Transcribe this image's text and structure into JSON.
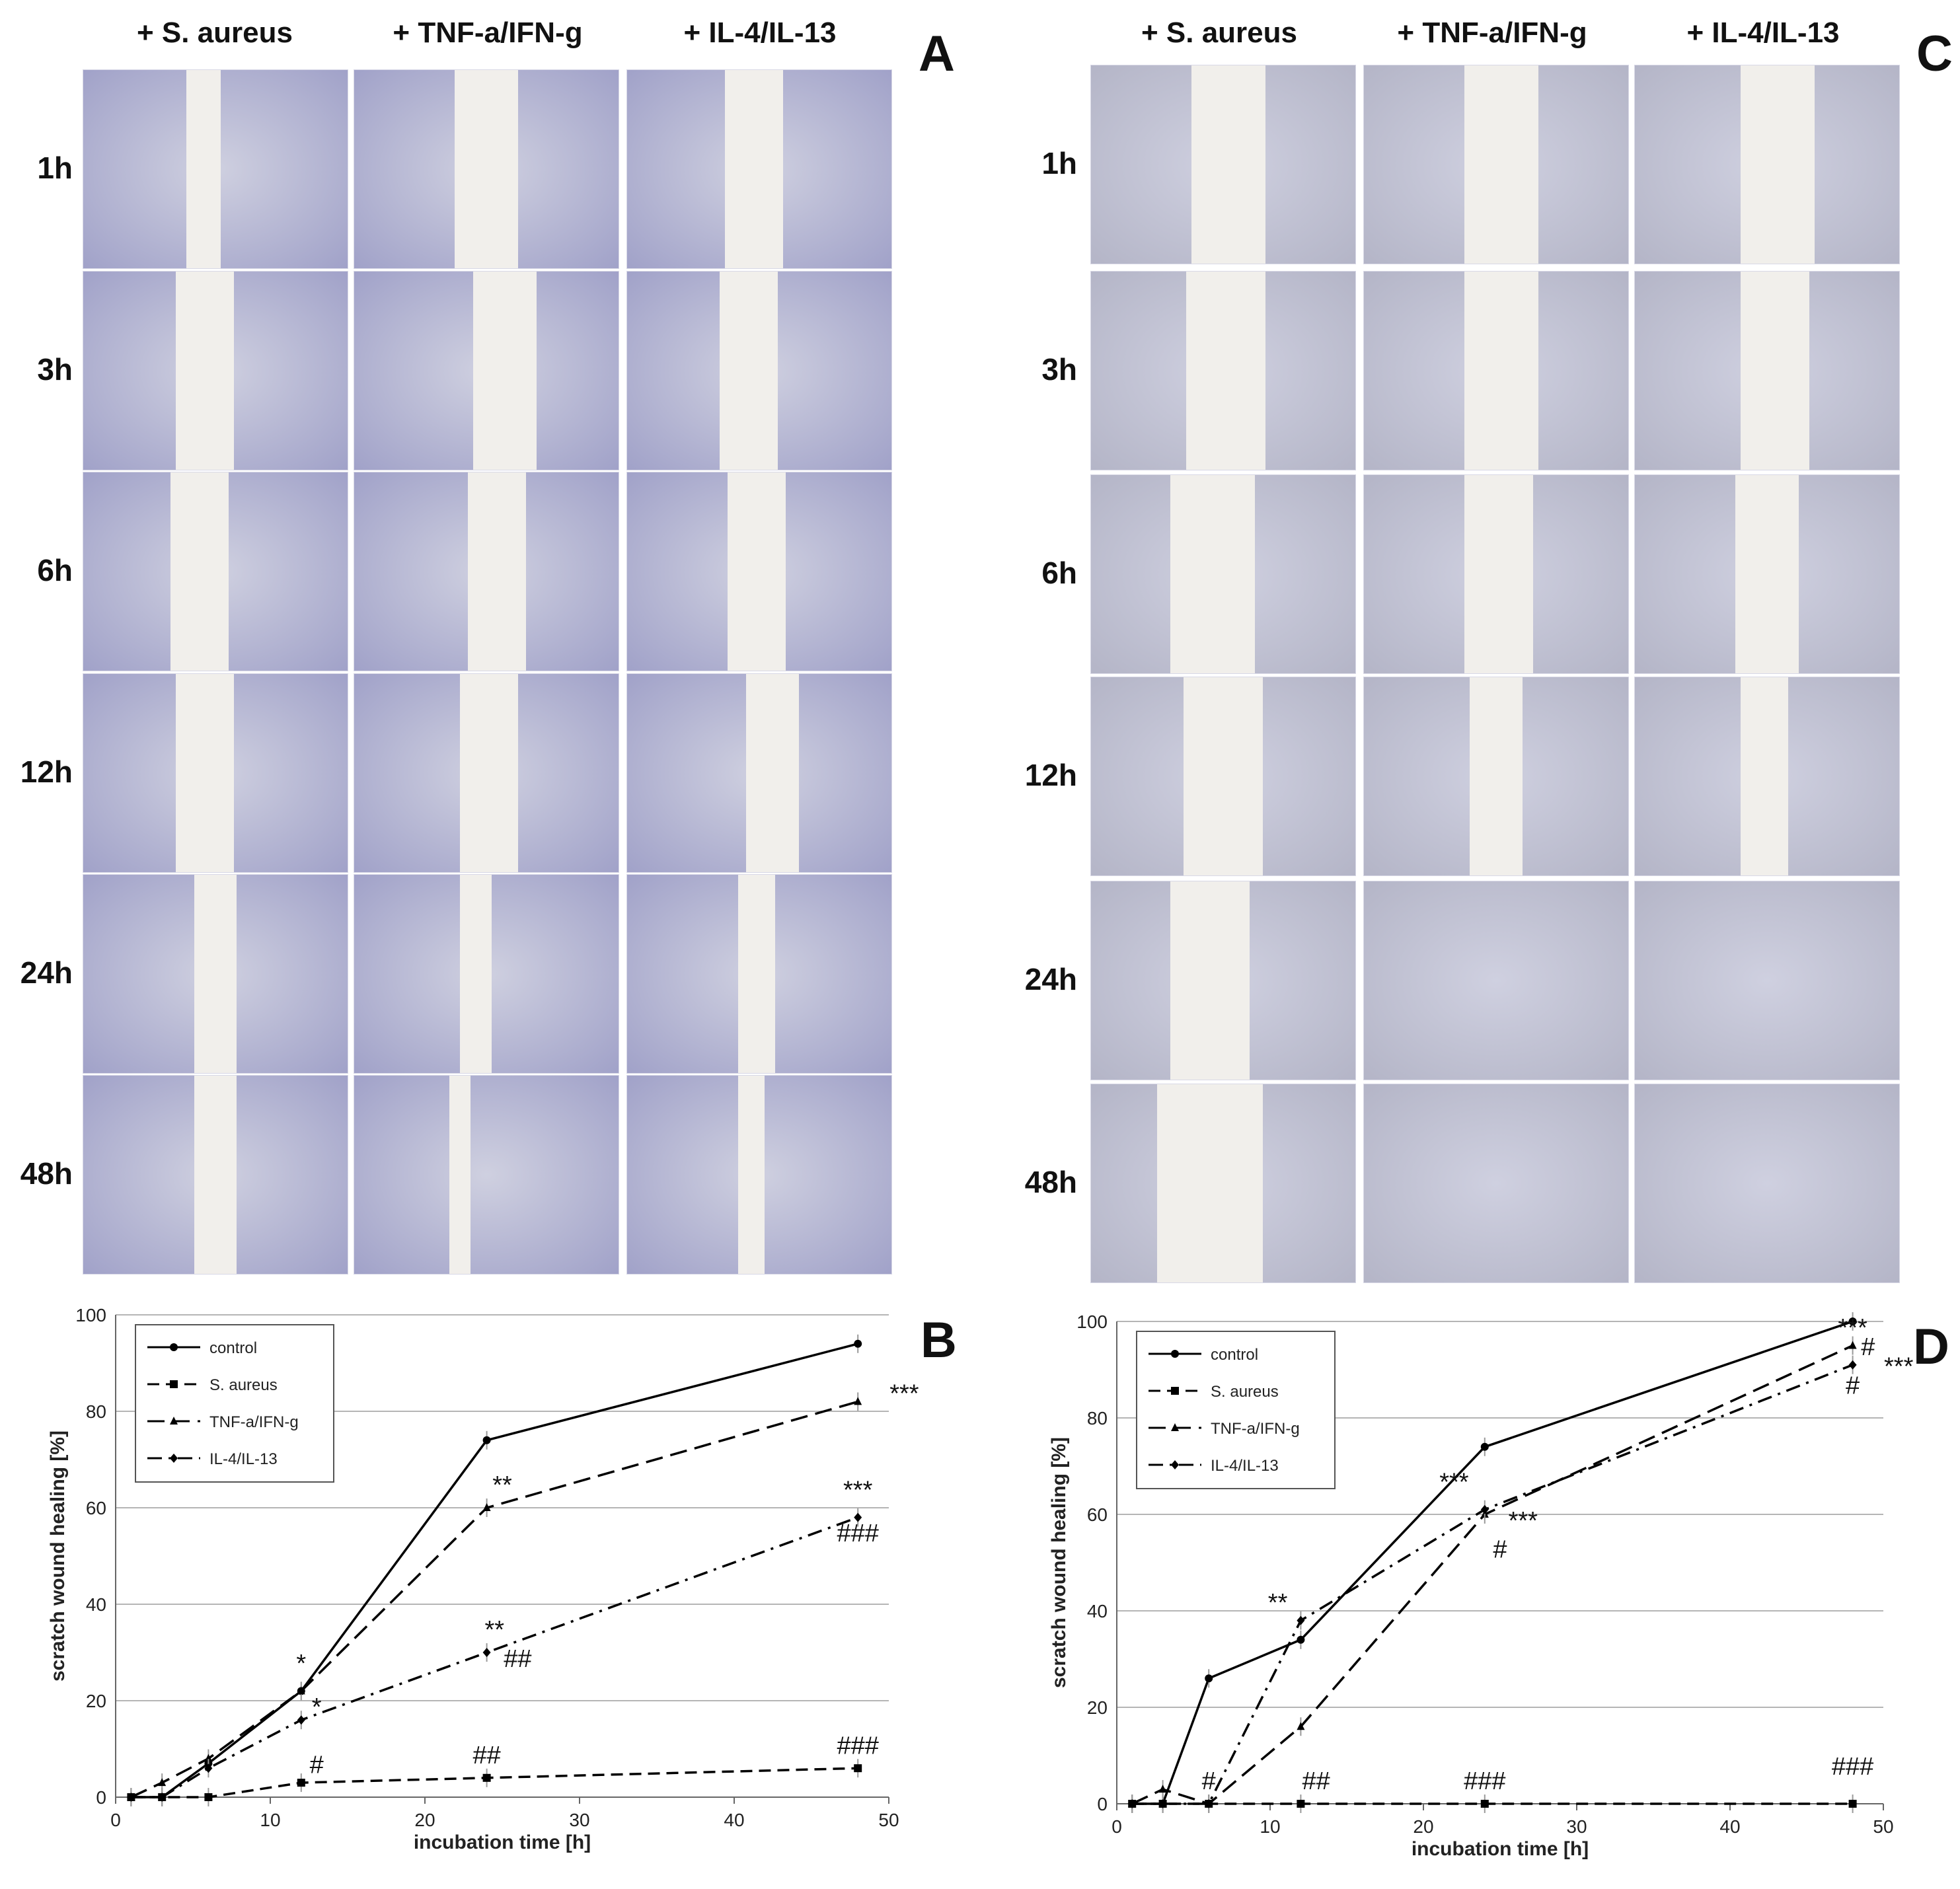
{
  "panel_a": {
    "letter": "A",
    "columns": [
      "+ S. aureus",
      "+ TNF-a/IFN-g",
      "+ IL-4/IL-13"
    ],
    "rows": [
      "1h",
      "3h",
      "6h",
      "12h",
      "24h",
      "48h"
    ],
    "image_tint": "#8e8fbf"
  },
  "panel_c": {
    "letter": "C",
    "columns": [
      "+ S. aureus",
      "+ TNF-a/IFN-g",
      "+ IL-4/IL-13"
    ],
    "rows": [
      "1h",
      "3h",
      "6h",
      "12h",
      "24h",
      "48h"
    ],
    "image_tint": "#a9aabd"
  },
  "chart_data": [
    {
      "panel": "B",
      "type": "line",
      "xlabel": "incubation time [h]",
      "ylabel": "scratch wound healing [%]",
      "xlim": [
        0,
        50
      ],
      "ylim": [
        0,
        100
      ],
      "xticks": [
        "0",
        "10",
        "20",
        "30",
        "40",
        "50"
      ],
      "yticks": [
        "0",
        "20",
        "40",
        "60",
        "80",
        "100"
      ],
      "grid": "horizontal",
      "legend_position": "top-left",
      "series": [
        {
          "name": "control",
          "style": "solid",
          "marker": "circle",
          "x": [
            1,
            3,
            6,
            12,
            24,
            48
          ],
          "y": [
            0,
            0,
            7,
            22,
            74,
            94
          ]
        },
        {
          "name": "S. aureus",
          "style": "dashed",
          "marker": "square",
          "x": [
            1,
            3,
            6,
            12,
            24,
            48
          ],
          "y": [
            0,
            0,
            0,
            3,
            4,
            6
          ]
        },
        {
          "name": "TNF-a/IFN-g",
          "style": "longdash",
          "marker": "triangle",
          "x": [
            1,
            3,
            6,
            12,
            24,
            48
          ],
          "y": [
            0,
            3,
            8,
            22,
            60,
            82
          ]
        },
        {
          "name": "IL-4/IL-13",
          "style": "dashdot",
          "marker": "diamond",
          "x": [
            1,
            3,
            6,
            12,
            24,
            48
          ],
          "y": [
            0,
            0,
            6,
            16,
            30,
            58
          ]
        }
      ],
      "annotations": [
        {
          "text": "*",
          "x": 12,
          "y": 26
        },
        {
          "text": "*",
          "x": 13,
          "y": 17
        },
        {
          "text": "#",
          "x": 13,
          "y": 5
        },
        {
          "text": "**",
          "x": 25,
          "y": 63
        },
        {
          "text": "**",
          "x": 24.5,
          "y": 33
        },
        {
          "text": "##",
          "x": 26,
          "y": 27
        },
        {
          "text": "##",
          "x": 24,
          "y": 7
        },
        {
          "text": "***",
          "x": 51,
          "y": 82
        },
        {
          "text": "***",
          "x": 48,
          "y": 62
        },
        {
          "text": "###",
          "x": 48,
          "y": 53
        },
        {
          "text": "###",
          "x": 48,
          "y": 9
        }
      ]
    },
    {
      "panel": "D",
      "type": "line",
      "xlabel": "incubation time [h]",
      "ylabel": "scratch wound healing [%]",
      "xlim": [
        0,
        50
      ],
      "ylim": [
        0,
        100
      ],
      "xticks": [
        "0",
        "10",
        "20",
        "30",
        "40",
        "50"
      ],
      "yticks": [
        "0",
        "20",
        "40",
        "60",
        "80",
        "100"
      ],
      "grid": "horizontal",
      "legend_position": "top-left",
      "series": [
        {
          "name": "control",
          "style": "solid",
          "marker": "circle",
          "x": [
            1,
            3,
            6,
            12,
            24,
            48
          ],
          "y": [
            0,
            0,
            26,
            34,
            74,
            100
          ]
        },
        {
          "name": "S. aureus",
          "style": "dashed",
          "marker": "square",
          "x": [
            1,
            3,
            6,
            12,
            24,
            48
          ],
          "y": [
            0,
            0,
            0,
            0,
            0,
            0
          ]
        },
        {
          "name": "TNF-a/IFN-g",
          "style": "longdash",
          "marker": "triangle",
          "x": [
            1,
            3,
            6,
            12,
            24,
            48
          ],
          "y": [
            0,
            3,
            0,
            16,
            60,
            95
          ]
        },
        {
          "name": "IL-4/IL-13",
          "style": "dashdot",
          "marker": "diamond",
          "x": [
            1,
            3,
            6,
            12,
            24,
            48
          ],
          "y": [
            0,
            0,
            0,
            38,
            61,
            91
          ]
        }
      ],
      "annotations": [
        {
          "text": "***",
          "x": 48,
          "y": 97
        },
        {
          "text": "#",
          "x": 49,
          "y": 93
        },
        {
          "text": "***",
          "x": 51,
          "y": 89
        },
        {
          "text": "#",
          "x": 48,
          "y": 85
        },
        {
          "text": "***",
          "x": 22,
          "y": 65
        },
        {
          "text": "***",
          "x": 26.5,
          "y": 57
        },
        {
          "text": "#",
          "x": 25,
          "y": 51
        },
        {
          "text": "**",
          "x": 10.5,
          "y": 40
        },
        {
          "text": "#",
          "x": 6,
          "y": 3
        },
        {
          "text": "##",
          "x": 13,
          "y": 3
        },
        {
          "text": "###",
          "x": 24,
          "y": 3
        },
        {
          "text": "###",
          "x": 48,
          "y": 6
        }
      ]
    }
  ]
}
